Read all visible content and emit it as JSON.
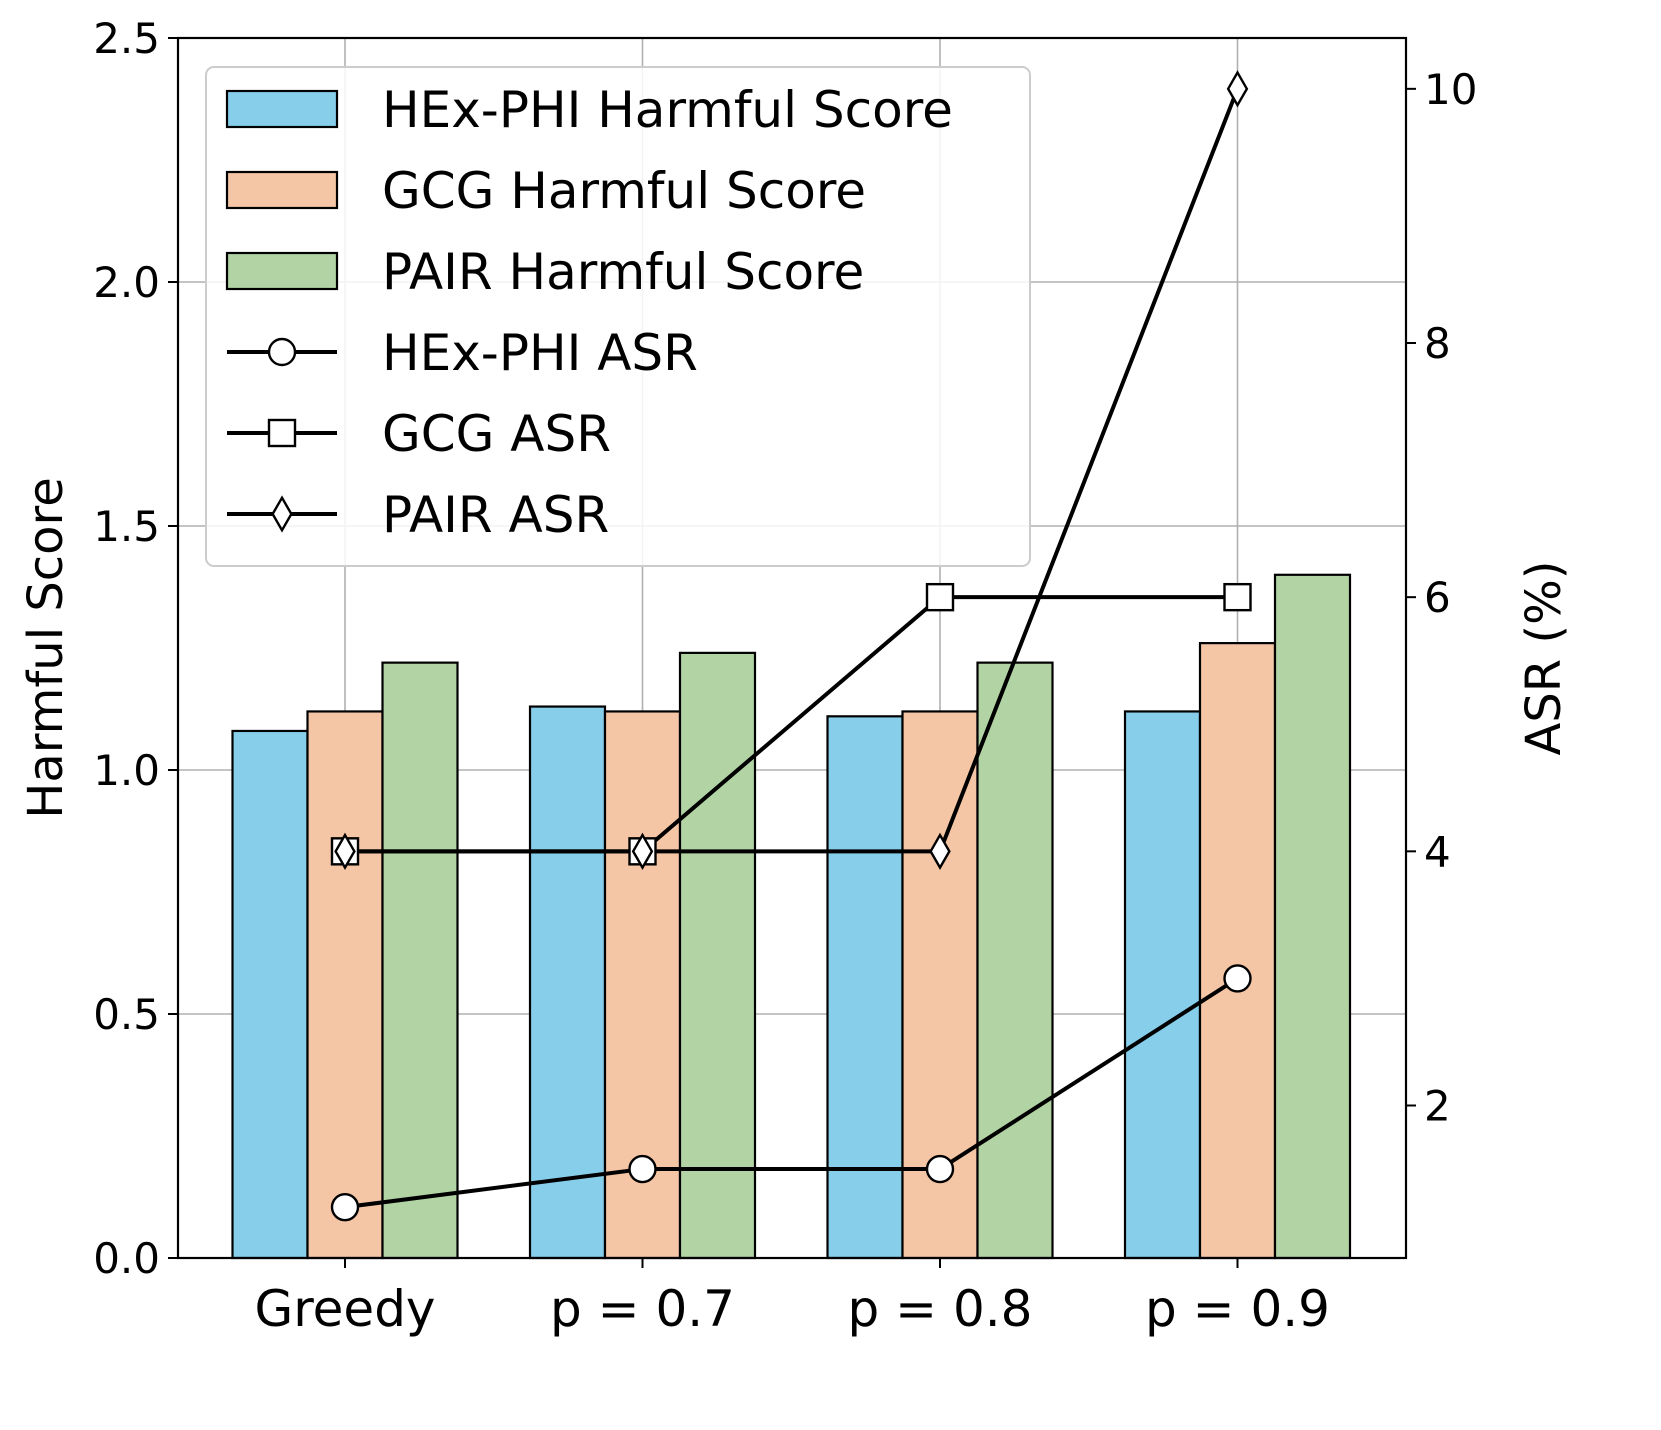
{
  "chart_data": {
    "type": "bar",
    "categories": [
      "Greedy",
      "p = 0.7",
      "p = 0.8",
      "p = 0.9"
    ],
    "series": [
      {
        "name": "HEx-PHI Harmful Score",
        "kind": "bar",
        "axis": "left",
        "color": "#87ceeb",
        "values": [
          1.08,
          1.13,
          1.11,
          1.12
        ]
      },
      {
        "name": "GCG Harmful Score",
        "kind": "bar",
        "axis": "left",
        "color": "#f5c6a5",
        "values": [
          1.12,
          1.12,
          1.12,
          1.26
        ]
      },
      {
        "name": "PAIR Harmful Score",
        "kind": "bar",
        "axis": "left",
        "color": "#b2d3a4",
        "values": [
          1.22,
          1.24,
          1.22,
          1.4
        ]
      },
      {
        "name": "HEx-PHI ASR",
        "kind": "line",
        "axis": "right",
        "marker": "circle",
        "color": "#000000",
        "values": [
          1.2,
          1.5,
          1.5,
          3.0
        ]
      },
      {
        "name": "GCG ASR",
        "kind": "line",
        "axis": "right",
        "marker": "square",
        "color": "#000000",
        "values": [
          4,
          4,
          6,
          6
        ]
      },
      {
        "name": "PAIR ASR",
        "kind": "line",
        "axis": "right",
        "marker": "diamond",
        "color": "#000000",
        "values": [
          4,
          4,
          4,
          10
        ]
      }
    ],
    "ylabel": "Harmful Score",
    "ylim": [
      0,
      2.5
    ],
    "yticks": [
      0.0,
      0.5,
      1.0,
      1.5,
      2.0,
      2.5
    ],
    "ytick_labels": [
      "0.0",
      "0.5",
      "1.0",
      "1.5",
      "2.0",
      "2.5"
    ],
    "y2label": "ASR (%)",
    "y2lim": [
      0.8,
      10.4
    ],
    "y2ticks": [
      2,
      4,
      6,
      8,
      10
    ],
    "y2tick_labels": [
      "2",
      "4",
      "6",
      "8",
      "10"
    ],
    "grid": true,
    "legend_position": "top-left"
  }
}
